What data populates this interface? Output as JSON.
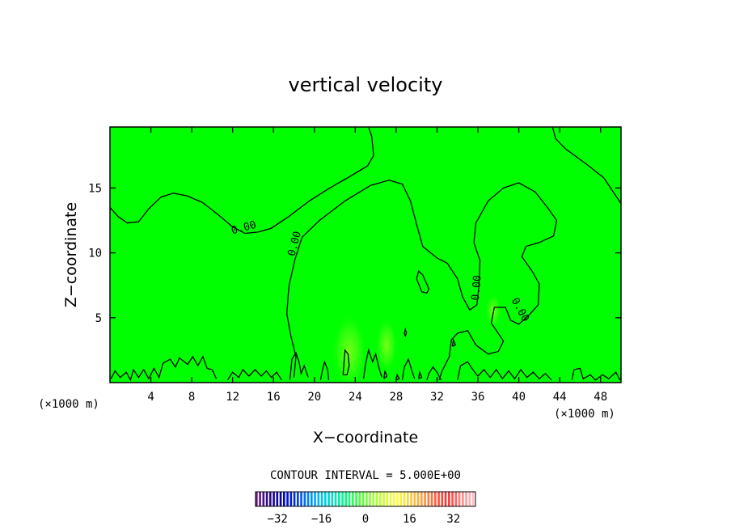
{
  "chart_data": {
    "type": "contour",
    "title": "vertical velocity",
    "xlabel": "X−coordinate",
    "ylabel": "Z−coordinate",
    "x_unit_left": "(×1000 m)",
    "x_unit_right": "(×1000 m)",
    "xlim": [
      0,
      50
    ],
    "ylim": [
      0,
      19.7
    ],
    "xticks": [
      4,
      8,
      12,
      16,
      20,
      24,
      28,
      32,
      36,
      40,
      44,
      48
    ],
    "xtick_labels": [
      "4",
      "8",
      "12",
      "16",
      "20",
      "24",
      "28",
      "32",
      "36",
      "40",
      "44",
      "48"
    ],
    "yticks": [
      5,
      10,
      15
    ],
    "ytick_labels": [
      "5",
      "10",
      "15"
    ],
    "background_color": "#00ff00",
    "contour_interval_label": "CONTOUR INTERVAL = 5.000E+00",
    "contour_labels": [
      {
        "text": "0.00",
        "x": 13.1,
        "z": 11.9,
        "angle": -15
      },
      {
        "text": "0.00",
        "x": 18.1,
        "z": 10.7,
        "angle": -75
      },
      {
        "text": "0.00",
        "x": 35.9,
        "z": 7.3,
        "angle": -85
      },
      {
        "text": "0.00",
        "x": 40.1,
        "z": 5.6,
        "angle": 62
      }
    ],
    "colorbar": {
      "vmin": -40,
      "vmax": 40,
      "ticks": [
        -32,
        -16,
        0,
        16,
        32
      ],
      "tick_labels": [
        "−32",
        "−16",
        "0",
        "16",
        "32"
      ],
      "colors": [
        "#6a1a8a",
        "#2a0a80",
        "#0000b0",
        "#0030e0",
        "#0080ff",
        "#00c0ff",
        "#00e0c0",
        "#00ff80",
        "#40ff40",
        "#90ff30",
        "#d0ff30",
        "#ffff40",
        "#ffd040",
        "#ffa040",
        "#ff6040",
        "#ff3030",
        "#ff8080",
        "#ffc0c0"
      ]
    },
    "contours": [
      {
        "name": "upper-left",
        "points": [
          [
            0,
            13.5
          ],
          [
            0.8,
            12.8
          ],
          [
            1.7,
            12.3
          ],
          [
            2.8,
            12.4
          ],
          [
            3.8,
            13.4
          ],
          [
            5,
            14.3
          ],
          [
            6.2,
            14.6
          ],
          [
            7.5,
            14.4
          ],
          [
            9,
            13.9
          ],
          [
            10.5,
            13.0
          ],
          [
            12,
            12.0
          ],
          [
            13.2,
            11.5
          ],
          [
            14.5,
            11.6
          ],
          [
            15.8,
            11.9
          ],
          [
            17.5,
            12.8
          ],
          [
            19.5,
            14.0
          ],
          [
            21.5,
            15.0
          ],
          [
            23.5,
            15.9
          ],
          [
            25.2,
            16.7
          ],
          [
            25.8,
            17.5
          ],
          [
            25.6,
            19.0
          ],
          [
            25.3,
            19.7
          ]
        ]
      },
      {
        "name": "center",
        "points": [
          [
            18.0,
            0.4
          ],
          [
            18.2,
            2.0
          ],
          [
            17.7,
            3.6
          ],
          [
            17.3,
            5.3
          ],
          [
            17.5,
            7.4
          ],
          [
            18.1,
            9.5
          ],
          [
            18.8,
            11.2
          ],
          [
            20.5,
            12.5
          ],
          [
            23.0,
            14.0
          ],
          [
            25.5,
            15.2
          ],
          [
            27.3,
            15.6
          ],
          [
            28.6,
            15.3
          ],
          [
            29.4,
            14.0
          ],
          [
            30.0,
            12.2
          ],
          [
            30.6,
            10.5
          ],
          [
            32.0,
            9.6
          ],
          [
            33.0,
            9.2
          ],
          [
            34.0,
            8.0
          ],
          [
            34.5,
            6.6
          ],
          [
            35.2,
            5.6
          ],
          [
            35.9,
            6.0
          ],
          [
            36.1,
            7.5
          ],
          [
            36.2,
            9.4
          ],
          [
            35.6,
            10.8
          ]
        ]
      },
      {
        "name": "right-lobe",
        "points": [
          [
            35.6,
            10.8
          ],
          [
            35.8,
            12.3
          ],
          [
            37.0,
            14.0
          ],
          [
            38.5,
            15.0
          ],
          [
            40.0,
            15.4
          ],
          [
            41.6,
            14.7
          ],
          [
            42.8,
            13.5
          ],
          [
            43.7,
            12.5
          ],
          [
            43.4,
            11.3
          ],
          [
            42.0,
            10.8
          ],
          [
            40.7,
            10.5
          ],
          [
            40.3,
            9.7
          ],
          [
            41.3,
            8.6
          ],
          [
            42.0,
            7.6
          ],
          [
            41.9,
            6.0
          ],
          [
            41.0,
            5.2
          ],
          [
            40.0,
            4.5
          ],
          [
            39.2,
            4.8
          ],
          [
            38.7,
            5.8
          ],
          [
            37.6,
            5.8
          ],
          [
            37.3,
            4.6
          ],
          [
            38.5,
            3.2
          ],
          [
            38.0,
            2.4
          ],
          [
            37.0,
            2.2
          ],
          [
            35.8,
            2.9
          ],
          [
            35.0,
            4.0
          ],
          [
            34.0,
            3.8
          ],
          [
            33.4,
            3.3
          ],
          [
            33.2,
            2.0
          ],
          [
            32.5,
            0.9
          ],
          [
            32.2,
            0.2
          ]
        ]
      },
      {
        "name": "upper-right",
        "points": [
          [
            43.3,
            19.7
          ],
          [
            43.6,
            18.8
          ],
          [
            44.6,
            18.0
          ],
          [
            46.5,
            16.9
          ],
          [
            48.3,
            15.8
          ],
          [
            50.0,
            13.8
          ]
        ]
      },
      {
        "name": "island-30",
        "points": [
          [
            30.0,
            8.0
          ],
          [
            30.2,
            8.6
          ],
          [
            30.6,
            8.3
          ],
          [
            31.0,
            7.6
          ],
          [
            31.2,
            7.2
          ],
          [
            31.0,
            6.9
          ],
          [
            30.5,
            7.0
          ],
          [
            30.0,
            8.0
          ]
        ]
      },
      {
        "name": "island-23",
        "points": [
          [
            22.8,
            0.6
          ],
          [
            22.9,
            1.6
          ],
          [
            23.0,
            2.5
          ],
          [
            23.3,
            2.2
          ],
          [
            23.4,
            1.3
          ],
          [
            23.2,
            0.6
          ],
          [
            22.8,
            0.6
          ]
        ]
      },
      {
        "name": "island-29",
        "points": [
          [
            28.8,
            3.8
          ],
          [
            28.9,
            4.1
          ],
          [
            29.0,
            3.8
          ],
          [
            28.9,
            3.6
          ],
          [
            28.8,
            3.8
          ]
        ]
      },
      {
        "name": "bottom-left",
        "points": [
          [
            0.1,
            0.3
          ],
          [
            0.5,
            0.9
          ],
          [
            1.0,
            0.4
          ],
          [
            1.6,
            0.8
          ],
          [
            2.0,
            0.2
          ],
          [
            2.3,
            1.0
          ],
          [
            2.8,
            0.4
          ],
          [
            3.3,
            1.0
          ],
          [
            3.8,
            0.3
          ],
          [
            4.3,
            1.1
          ],
          [
            4.8,
            0.4
          ],
          [
            5.2,
            1.5
          ],
          [
            5.9,
            1.8
          ],
          [
            6.4,
            1.2
          ],
          [
            6.8,
            1.9
          ],
          [
            7.6,
            1.4
          ],
          [
            8.1,
            2.0
          ],
          [
            8.6,
            1.3
          ],
          [
            9.1,
            2.0
          ],
          [
            9.5,
            1.1
          ],
          [
            10.0,
            1.0
          ],
          [
            10.4,
            0.3
          ]
        ]
      },
      {
        "name": "bottom-12",
        "points": [
          [
            11.5,
            0.2
          ],
          [
            12.0,
            0.8
          ],
          [
            12.6,
            0.4
          ],
          [
            13.0,
            1.0
          ],
          [
            13.6,
            0.5
          ],
          [
            14.2,
            1.0
          ],
          [
            14.8,
            0.5
          ],
          [
            15.3,
            0.9
          ],
          [
            15.8,
            0.4
          ],
          [
            16.3,
            0.8
          ],
          [
            16.8,
            0.2
          ]
        ]
      },
      {
        "name": "bottom-18",
        "points": [
          [
            17.6,
            0.2
          ],
          [
            17.8,
            1.8
          ],
          [
            18.2,
            2.3
          ],
          [
            18.5,
            1.6
          ],
          [
            18.7,
            0.7
          ],
          [
            19.0,
            1.3
          ],
          [
            19.4,
            0.4
          ]
        ]
      },
      {
        "name": "bottom-21",
        "points": [
          [
            20.6,
            0.2
          ],
          [
            20.8,
            1.0
          ],
          [
            21.0,
            1.6
          ],
          [
            21.3,
            1.0
          ],
          [
            21.4,
            0.2
          ]
        ]
      },
      {
        "name": "bottom-25",
        "points": [
          [
            24.8,
            0.3
          ],
          [
            25.0,
            1.4
          ],
          [
            25.3,
            2.5
          ],
          [
            25.7,
            1.6
          ],
          [
            26.0,
            2.2
          ],
          [
            26.3,
            1.2
          ],
          [
            26.6,
            0.4
          ]
        ]
      },
      {
        "name": "bottom-29",
        "points": [
          [
            28.6,
            0.2
          ],
          [
            28.8,
            1.2
          ],
          [
            29.2,
            1.8
          ],
          [
            29.5,
            1.0
          ],
          [
            29.8,
            0.3
          ]
        ]
      },
      {
        "name": "bottom-33",
        "points": [
          [
            31.0,
            0.2
          ],
          [
            31.2,
            0.7
          ],
          [
            31.6,
            1.2
          ],
          [
            32.0,
            0.8
          ],
          [
            32.4,
            0.2
          ]
        ]
      },
      {
        "name": "bottom-right",
        "points": [
          [
            34.0,
            0.2
          ],
          [
            34.3,
            1.3
          ],
          [
            35.0,
            1.6
          ],
          [
            35.5,
            1.0
          ],
          [
            36.0,
            0.5
          ],
          [
            36.6,
            1.0
          ],
          [
            37.2,
            0.4
          ],
          [
            37.8,
            1.0
          ],
          [
            38.4,
            0.3
          ],
          [
            39.0,
            0.9
          ],
          [
            39.6,
            0.3
          ],
          [
            40.2,
            1.0
          ],
          [
            40.8,
            0.4
          ],
          [
            41.4,
            0.8
          ],
          [
            42.0,
            0.3
          ],
          [
            42.6,
            0.7
          ],
          [
            43.2,
            0.2
          ]
        ]
      },
      {
        "name": "bottom-45",
        "points": [
          [
            45.2,
            0.2
          ],
          [
            45.4,
            1.0
          ],
          [
            46.0,
            1.1
          ],
          [
            46.3,
            0.3
          ],
          [
            47.0,
            0.6
          ],
          [
            47.5,
            0.2
          ],
          [
            48.2,
            0.6
          ],
          [
            48.8,
            0.3
          ],
          [
            49.5,
            0.8
          ],
          [
            49.9,
            0.2
          ]
        ]
      },
      {
        "name": "dot-1",
        "points": [
          [
            26.8,
            0.3
          ],
          [
            26.9,
            0.9
          ],
          [
            27.1,
            0.5
          ],
          [
            26.8,
            0.3
          ]
        ]
      },
      {
        "name": "dot-2",
        "points": [
          [
            28.0,
            0.2
          ],
          [
            28.1,
            0.6
          ],
          [
            28.3,
            0.3
          ],
          [
            28.0,
            0.2
          ]
        ]
      },
      {
        "name": "dot-3",
        "points": [
          [
            30.2,
            0.3
          ],
          [
            30.3,
            0.8
          ],
          [
            30.5,
            0.4
          ],
          [
            30.2,
            0.3
          ]
        ]
      },
      {
        "name": "dot-4",
        "points": [
          [
            33.5,
            2.8
          ],
          [
            33.6,
            3.3
          ],
          [
            33.8,
            2.9
          ],
          [
            33.5,
            2.8
          ]
        ]
      }
    ]
  }
}
